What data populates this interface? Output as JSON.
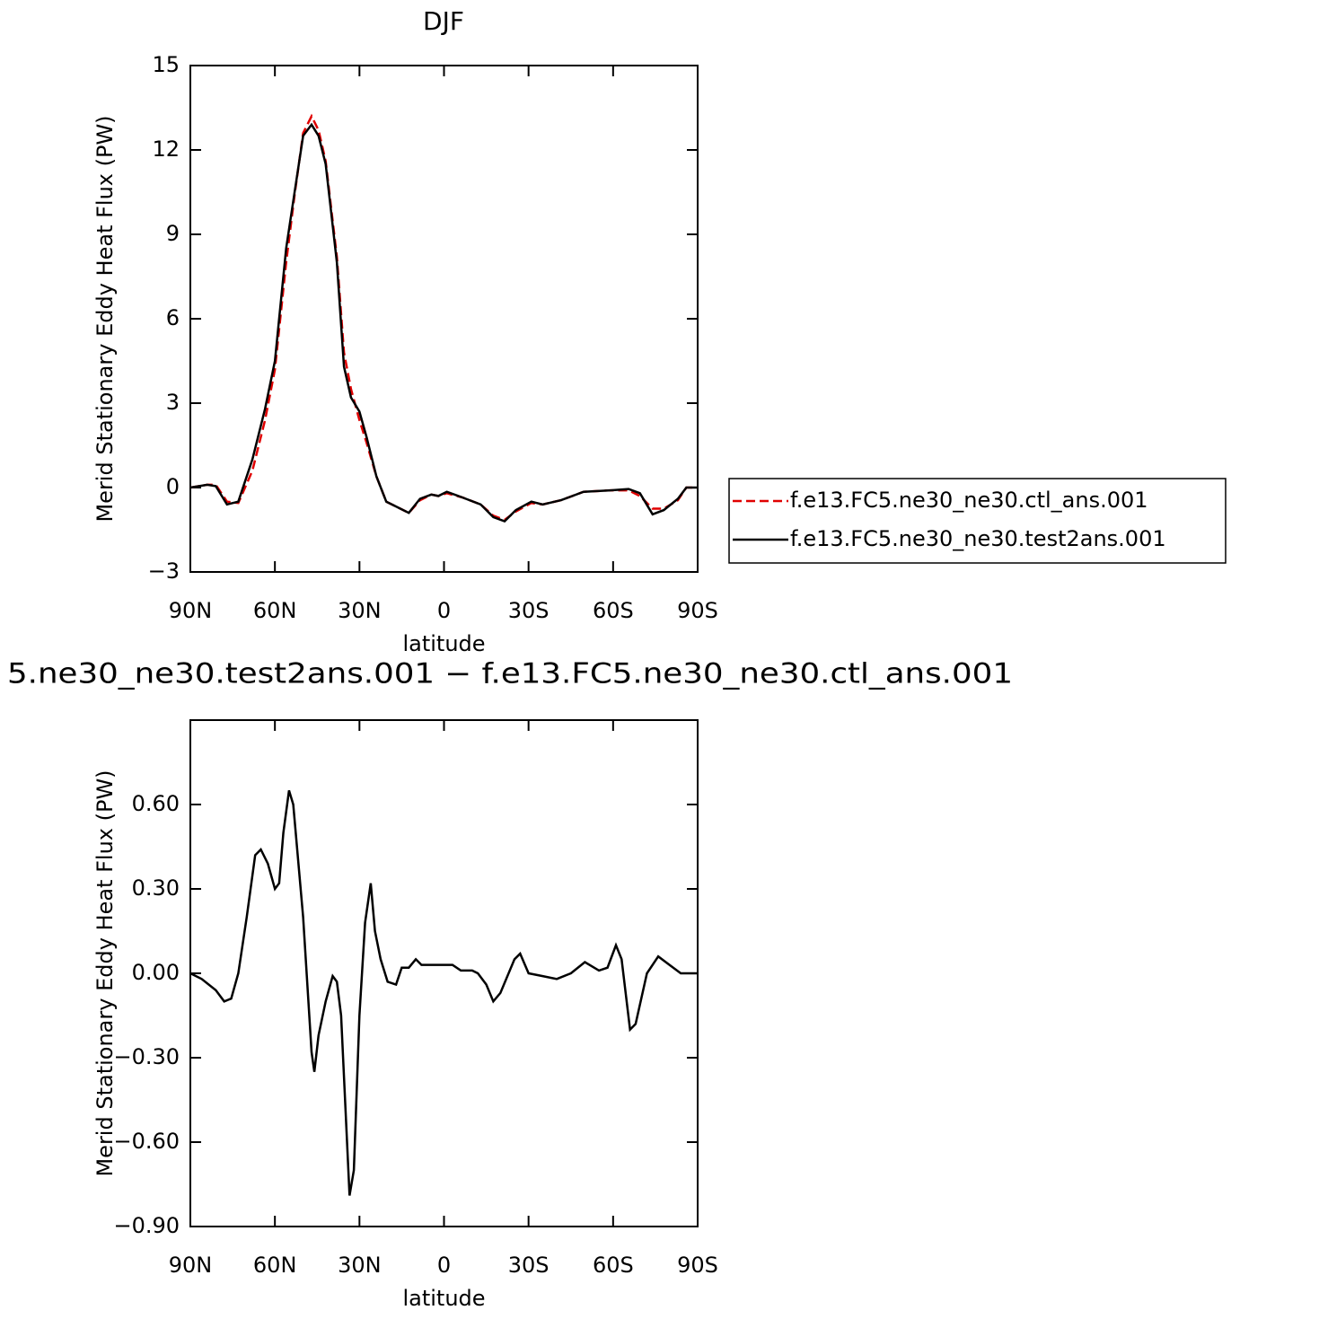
{
  "chart_data": [
    {
      "type": "line",
      "title": "DJF",
      "xlabel": "latitude",
      "ylabel": "Merid Stationary Eddy Heat Flux (PW)",
      "x": [
        90,
        84,
        81,
        77,
        73,
        68,
        63.5,
        60,
        56,
        53,
        50,
        47,
        44.5,
        42,
        38,
        35.5,
        33,
        30,
        27.5,
        24,
        20.5,
        17.5,
        12.5,
        8.5,
        4.5,
        2,
        -1,
        -6.5,
        -13,
        -17.5,
        -21.5,
        -25.5,
        -31,
        -35,
        -41.5,
        -49.5,
        -59,
        -65.5,
        -69.5,
        -74,
        -78,
        -83,
        -86,
        -90
      ],
      "series": [
        {
          "name": "f.e13.FC5.ne30_ne30.ctl_ans.001",
          "color": "#e00000",
          "linestyle": "dashed",
          "values": [
            0,
            0.1,
            0.1,
            -0.5,
            -0.55,
            0.6,
            2.4,
            4.2,
            8.0,
            10.4,
            12.6,
            13.2,
            12.7,
            11.6,
            8.2,
            4.8,
            3.5,
            2.4,
            1.6,
            0.4,
            -0.5,
            -0.65,
            -0.9,
            -0.45,
            -0.25,
            -0.3,
            -0.2,
            -0.35,
            -0.6,
            -1.0,
            -1.15,
            -0.85,
            -0.55,
            -0.6,
            -0.45,
            -0.15,
            -0.1,
            -0.1,
            -0.3,
            -0.75,
            -0.75,
            -0.45,
            0,
            0
          ]
        },
        {
          "name": "f.e13.FC5.ne30_ne30.test2ans.001",
          "color": "#000000",
          "linestyle": "solid",
          "values": [
            0,
            0.1,
            0.05,
            -0.6,
            -0.5,
            1.0,
            2.8,
            4.5,
            8.5,
            10.5,
            12.5,
            12.9,
            12.5,
            11.5,
            8.0,
            4.3,
            3.2,
            2.7,
            1.8,
            0.4,
            -0.5,
            -0.65,
            -0.9,
            -0.4,
            -0.25,
            -0.3,
            -0.15,
            -0.35,
            -0.6,
            -1.05,
            -1.2,
            -0.8,
            -0.5,
            -0.6,
            -0.45,
            -0.15,
            -0.1,
            -0.05,
            -0.2,
            -0.95,
            -0.8,
            -0.4,
            0,
            0
          ]
        }
      ],
      "xlim": [
        90,
        -90
      ],
      "xticks": [
        {
          "value": 90,
          "label": "90N"
        },
        {
          "value": 60,
          "label": "60N"
        },
        {
          "value": 30,
          "label": "30N"
        },
        0,
        {
          "value": -30,
          "label": "30S"
        },
        {
          "value": -60,
          "label": "60S"
        },
        {
          "value": -90,
          "label": "90S"
        }
      ],
      "ylim": [
        -3,
        15
      ],
      "yticks": [
        {
          "value": -3,
          "label": "−3"
        },
        0,
        3,
        6,
        9,
        12,
        15
      ],
      "legend": "right"
    },
    {
      "type": "line",
      "title": "5.ne30_ne30.test2ans.001 − f.e13.FC5.ne30_ne30.ctl_ans.001",
      "xlabel": "latitude",
      "ylabel": "Merid Stationary Eddy Heat Flux (PW)",
      "x": [
        90,
        86,
        81,
        78,
        75.5,
        73,
        70,
        67,
        65,
        62.5,
        60,
        58.5,
        57,
        55,
        53.5,
        50,
        47,
        46,
        44.5,
        42,
        39.5,
        38,
        36.5,
        33.5,
        32,
        30,
        28,
        26,
        24.5,
        22.5,
        20,
        17,
        15,
        12.5,
        10,
        8,
        3,
        -3,
        -6,
        -10,
        -12,
        -15,
        -17.5,
        -20,
        -25,
        -27,
        -30,
        -35,
        -40,
        -45,
        -50,
        -55,
        -58,
        -61,
        -63,
        -66,
        -68,
        -72,
        -76,
        -80,
        -84,
        -90
      ],
      "series": [
        {
          "name": null,
          "color": "#000000",
          "linestyle": "solid",
          "values": [
            0,
            -0.02,
            -0.06,
            -0.1,
            -0.09,
            0.0,
            0.2,
            0.42,
            0.44,
            0.39,
            0.3,
            0.32,
            0.5,
            0.65,
            0.6,
            0.2,
            -0.28,
            -0.35,
            -0.22,
            -0.1,
            -0.01,
            -0.03,
            -0.15,
            -0.79,
            -0.7,
            -0.15,
            0.18,
            0.32,
            0.15,
            0.05,
            -0.03,
            -0.04,
            0.02,
            0.02,
            0.05,
            0.03,
            0.03,
            0.03,
            0.01,
            0.01,
            0.0,
            -0.04,
            -0.1,
            -0.07,
            0.05,
            0.07,
            0.0,
            -0.01,
            -0.02,
            0.0,
            0.04,
            0.01,
            0.02,
            0.1,
            0.05,
            -0.2,
            -0.18,
            0.0,
            0.06,
            0.03,
            0.0,
            0
          ]
        }
      ],
      "xlim": [
        90,
        -90
      ],
      "xticks": [
        {
          "value": 90,
          "label": "90N"
        },
        {
          "value": 60,
          "label": "60N"
        },
        {
          "value": 30,
          "label": "30N"
        },
        0,
        {
          "value": -30,
          "label": "30S"
        },
        {
          "value": -60,
          "label": "60S"
        },
        {
          "value": -90,
          "label": "90S"
        }
      ],
      "ylim": [
        -0.9,
        0.9
      ],
      "yticks": [
        {
          "value": -0.9,
          "label": "−0.90"
        },
        {
          "value": -0.6,
          "label": "−0.60"
        },
        {
          "value": -0.3,
          "label": "−0.30"
        },
        {
          "value": 0,
          "label": "0.00"
        },
        {
          "value": 0.3,
          "label": "0.30"
        },
        {
          "value": 0.6,
          "label": "0.60"
        }
      ]
    }
  ]
}
